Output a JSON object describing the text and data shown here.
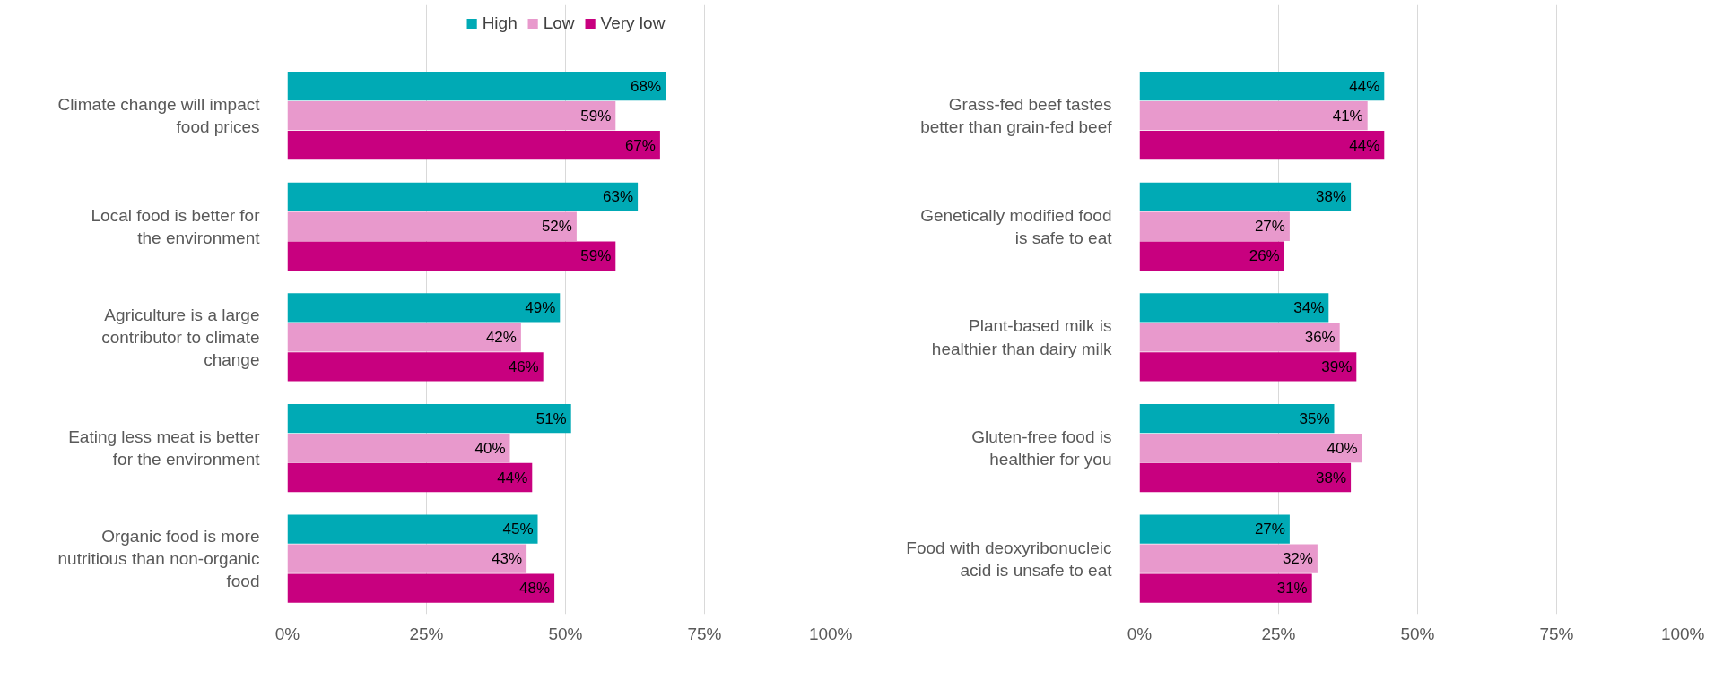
{
  "chart_data": [
    {
      "type": "bar",
      "orientation": "horizontal",
      "legend": "top",
      "grid": "x",
      "categories": [
        "Climate change will impact food prices",
        "Local food is better for the environment",
        "Agriculture is a large contributor to climate change",
        "Eating less meat is better for the environment",
        "Organic food is more nutritious than non-organic food"
      ],
      "series": [
        {
          "name": "High",
          "color": "#00aab5",
          "values": [
            68,
            63,
            49,
            51,
            45
          ],
          "value_labels": [
            "68%",
            "63%",
            "49%",
            "51%",
            "45%"
          ]
        },
        {
          "name": "Low",
          "color": "#e899cc",
          "values": [
            59,
            52,
            42,
            40,
            43
          ],
          "value_labels": [
            "59%",
            "52%",
            "42%",
            "40%",
            "43%"
          ]
        },
        {
          "name": "Very low",
          "color": "#c8007f",
          "values": [
            67,
            59,
            46,
            44,
            48
          ],
          "value_labels": [
            "67%",
            "59%",
            "46%",
            "44%",
            "48%"
          ]
        }
      ],
      "xlim": [
        0,
        100
      ],
      "xticks": [
        {
          "value": 0,
          "label": "0%"
        },
        {
          "value": 25,
          "label": "25%"
        },
        {
          "value": 50,
          "label": "50%"
        },
        {
          "value": 75,
          "label": "75%"
        },
        {
          "value": 100,
          "label": "100%"
        }
      ]
    },
    {
      "type": "bar",
      "orientation": "horizontal",
      "grid": "x",
      "categories": [
        "Grass-fed beef tastes better than grain-fed beef",
        "Genetically modified food is safe to eat",
        "Plant-based milk is healthier than dairy milk",
        "Gluten-free food is healthier for you",
        "Food with deoxyribonucleic acid is unsafe to eat"
      ],
      "series": [
        {
          "color": "#00aab5",
          "values": [
            44,
            38,
            34,
            35,
            27
          ],
          "value_labels": [
            "44%",
            "38%",
            "34%",
            "35%",
            "27%"
          ]
        },
        {
          "color": "#e899cc",
          "values": [
            41,
            27,
            36,
            40,
            32
          ],
          "value_labels": [
            "41%",
            "27%",
            "36%",
            "40%",
            "32%"
          ]
        },
        {
          "color": "#c8007f",
          "values": [
            44,
            26,
            39,
            38,
            31
          ],
          "value_labels": [
            "44%",
            "26%",
            "39%",
            "38%",
            "31%"
          ]
        }
      ],
      "xlim": [
        0,
        100
      ],
      "xticks": [
        {
          "value": 0,
          "label": "0%"
        },
        {
          "value": 25,
          "label": "25%"
        },
        {
          "value": 50,
          "label": "50%"
        },
        {
          "value": 75,
          "label": "75%"
        },
        {
          "value": 100,
          "label": "100%"
        }
      ]
    }
  ]
}
